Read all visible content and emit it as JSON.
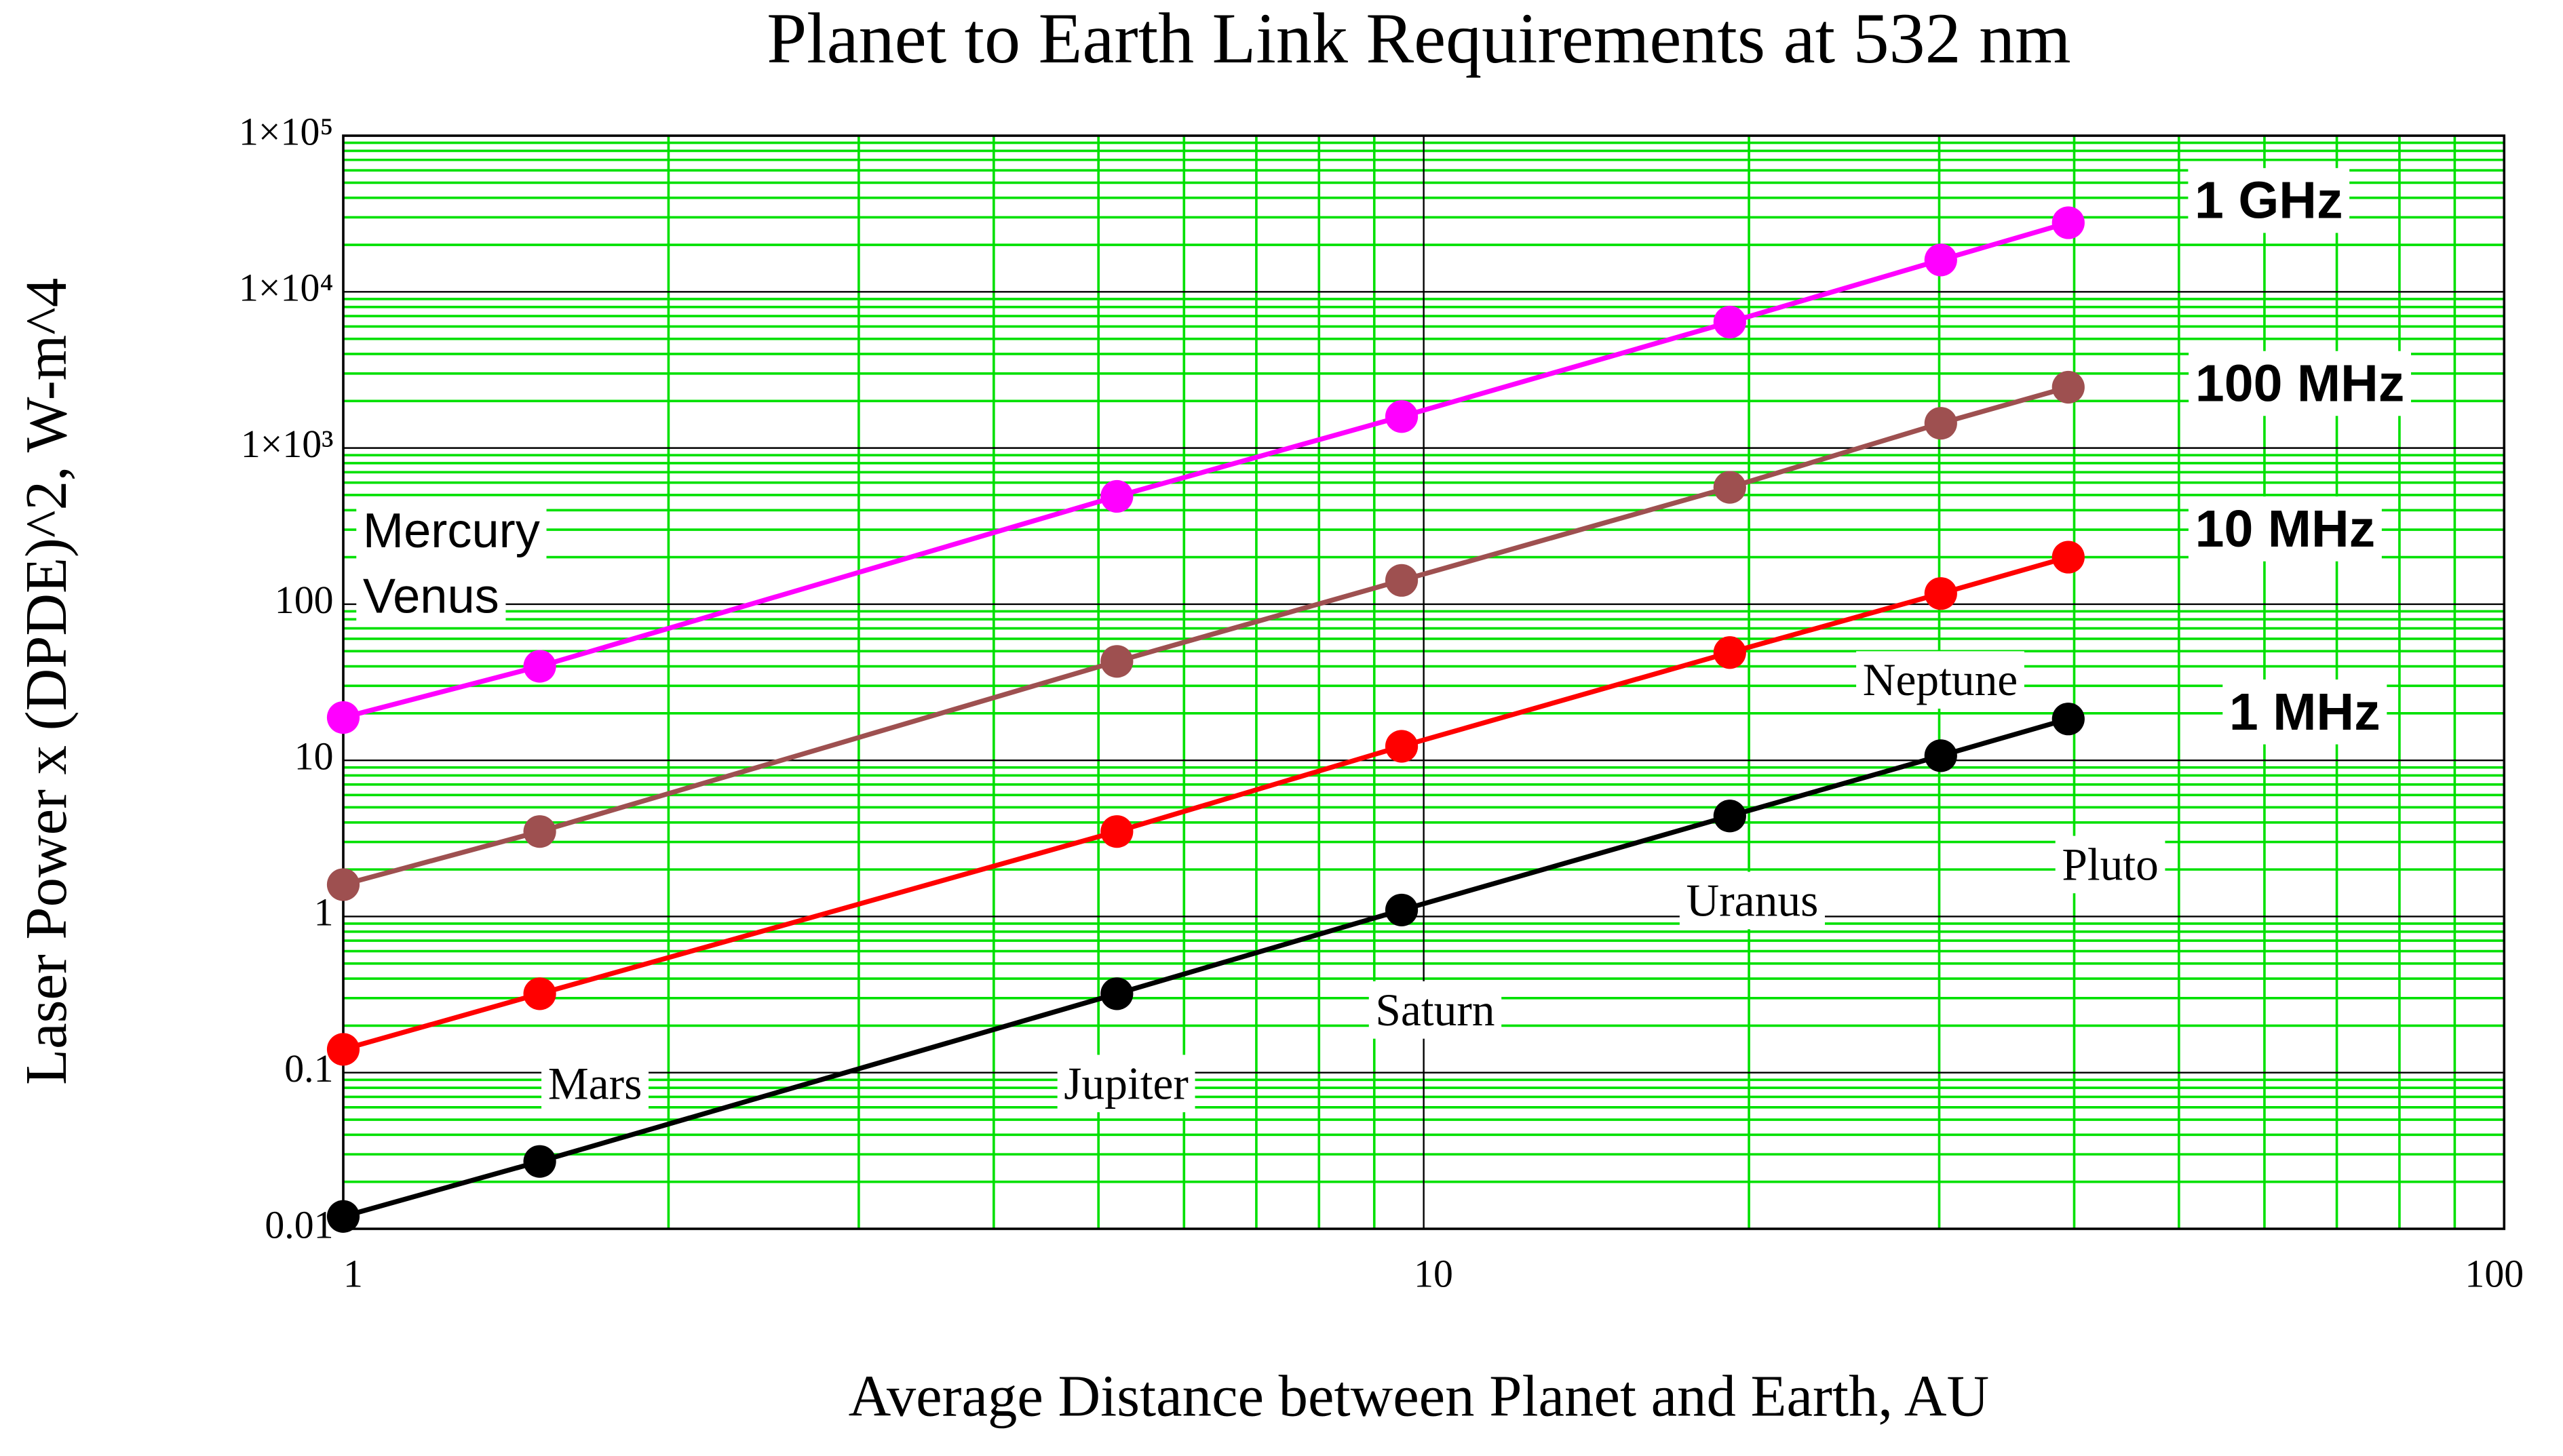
{
  "chart_data": {
    "type": "line",
    "title": "Planet to Earth Link Requirements at 532 nm",
    "x_label": "Average Distance between Planet and Earth, AU",
    "y_label": "Laser Power x (DPDE)^2, W-m^4",
    "x_log": true,
    "y_log": true,
    "grid": true,
    "minor_grid": true,
    "xlim": [
      1,
      100
    ],
    "xticks": [
      1,
      10,
      100
    ],
    "ylim": [
      0.01,
      100000
    ],
    "yticks": [
      0.01,
      0.1,
      1,
      10,
      100,
      {
        "value": 1000,
        "label": "1×10³"
      },
      {
        "value": 10000,
        "label": "1×10⁴"
      },
      {
        "value": 100000,
        "label": "1×10⁵"
      }
    ],
    "x": [
      1,
      1.52,
      5.2,
      9.54,
      19.2,
      30.1,
      39.5
    ],
    "series": [
      {
        "name": "1 GHz",
        "color": "#ff00ff",
        "values": [
          18.8,
          40,
          490,
          1590,
          6400,
          16000,
          27700
        ]
      },
      {
        "name": "100 MHz",
        "color": "#9e5050",
        "values": [
          1.6,
          3.5,
          43,
          142,
          560,
          1440,
          2450
        ]
      },
      {
        "name": "10 MHz",
        "color": "#ff0000",
        "values": [
          0.141,
          0.32,
          3.5,
          12.3,
          49,
          117,
          200
        ]
      },
      {
        "name": "1 MHz",
        "color": "#000000",
        "values": [
          0.012,
          0.027,
          0.32,
          1.1,
          4.4,
          10.7,
          18.4
        ]
      }
    ],
    "annotations": [
      "Mercury",
      "Venus",
      "Mars",
      "Jupiter",
      "Saturn",
      "Uranus",
      "Neptune",
      "Pluto"
    ]
  }
}
